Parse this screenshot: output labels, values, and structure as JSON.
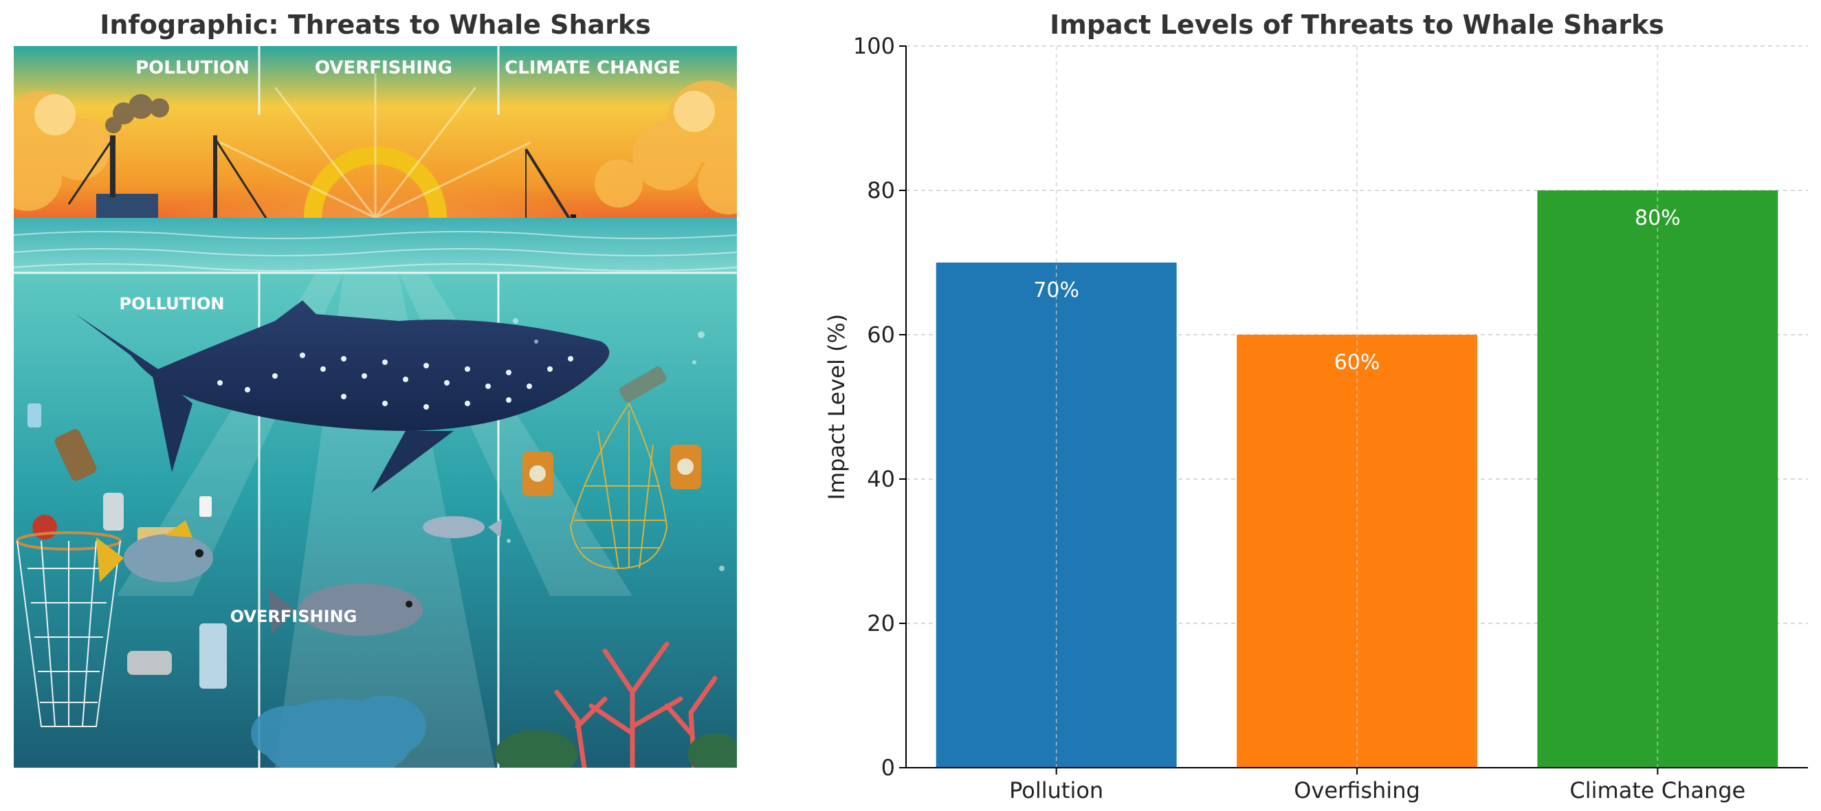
{
  "infographic": {
    "title": "Infographic: Threats to Whale Sharks",
    "section_labels": [
      "POLLUTION",
      "OVERFISHING",
      "CLIMATE CHANGE"
    ],
    "inset_labels": [
      "POLLUTION",
      "OVERFISHING"
    ]
  },
  "chart_data": {
    "type": "bar",
    "title": "Impact Levels of Threats to Whale Sharks",
    "xlabel": "",
    "ylabel": "Impact Level (%)",
    "categories": [
      "Pollution",
      "Overfishing",
      "Climate Change"
    ],
    "values": [
      70,
      60,
      80
    ],
    "data_labels": [
      "70%",
      "60%",
      "80%"
    ],
    "colors": [
      "#1f77b4",
      "#ff7f0e",
      "#2ca02c"
    ],
    "ylim": [
      0,
      100
    ],
    "yticks": [
      0,
      20,
      40,
      60,
      80,
      100
    ],
    "grid": true
  }
}
